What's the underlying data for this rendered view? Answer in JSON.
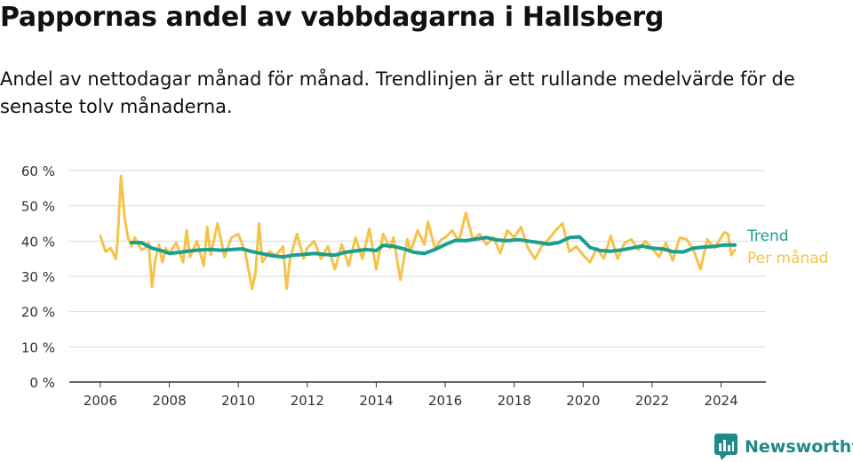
{
  "title": "Pappornas andel av vabbdagarna i Hallsberg",
  "subtitle": "Andel av nettodagar månad för månad. Trendlinjen är ett rullande medelvärde för de senaste tolv månaderna.",
  "brand": "Newsworthy",
  "colors": {
    "trend": "#1a9e8f",
    "monthly": "#f6c34a",
    "grid": "#d9d9d9",
    "axis": "#333333",
    "brand": "#1f8a88"
  },
  "chart_data": {
    "type": "line",
    "x_unit": "year (decimal)",
    "ylabel_format": "{v} %",
    "ylim": [
      0,
      60
    ],
    "yticks": [
      0,
      10,
      20,
      30,
      40,
      50,
      60
    ],
    "yticklabels": [
      "0 %",
      "10 %",
      "20 %",
      "30 %",
      "40 %",
      "50 %",
      "60 %"
    ],
    "xlim": [
      2005.1,
      2025.3
    ],
    "xticks": [
      2006,
      2008,
      2010,
      2012,
      2014,
      2016,
      2018,
      2020,
      2022,
      2024
    ],
    "xticklabels": [
      "2006",
      "2008",
      "2010",
      "2012",
      "2014",
      "2016",
      "2018",
      "2020",
      "2022",
      "2024"
    ],
    "grid": true,
    "legend": "right-end labels",
    "series": [
      {
        "name": "Trend",
        "color": "#1a9e8f",
        "x": [
          2006.9,
          2007.2,
          2007.5,
          2007.8,
          2008.0,
          2008.3,
          2008.6,
          2008.9,
          2009.2,
          2009.5,
          2009.8,
          2010.1,
          2010.4,
          2010.7,
          2011.0,
          2011.3,
          2011.6,
          2011.9,
          2012.2,
          2012.5,
          2012.8,
          2013.1,
          2013.4,
          2013.7,
          2014.0,
          2014.2,
          2014.5,
          2014.8,
          2015.1,
          2015.4,
          2015.7,
          2016.0,
          2016.3,
          2016.6,
          2016.9,
          2017.2,
          2017.5,
          2017.8,
          2018.1,
          2018.4,
          2018.7,
          2019.0,
          2019.3,
          2019.6,
          2019.9,
          2020.2,
          2020.5,
          2020.8,
          2021.1,
          2021.4,
          2021.7,
          2022.0,
          2022.3,
          2022.6,
          2022.9,
          2023.2,
          2023.5,
          2023.8,
          2024.1,
          2024.4
        ],
        "values": [
          39.6,
          39.5,
          38.0,
          37.2,
          36.5,
          36.8,
          37.2,
          37.5,
          37.6,
          37.4,
          37.6,
          37.8,
          37.0,
          36.4,
          35.8,
          35.5,
          36.0,
          36.2,
          36.5,
          36.2,
          36.0,
          36.8,
          37.2,
          37.6,
          37.3,
          38.8,
          38.5,
          37.8,
          36.8,
          36.5,
          37.6,
          39.0,
          40.2,
          40.1,
          40.6,
          41.0,
          40.3,
          40.1,
          40.4,
          40.0,
          39.6,
          39.1,
          39.6,
          41.0,
          41.2,
          38.2,
          37.3,
          37.1,
          37.5,
          38.0,
          38.6,
          38.0,
          37.8,
          37.0,
          36.9,
          38.0,
          38.3,
          38.5,
          38.9,
          38.9
        ]
      },
      {
        "name": "Per månad",
        "color": "#f6c34a",
        "x": [
          2006.0,
          2006.15,
          2006.3,
          2006.45,
          2006.5,
          2006.6,
          2006.7,
          2006.8,
          2006.9,
          2007.0,
          2007.1,
          2007.2,
          2007.3,
          2007.4,
          2007.5,
          2007.6,
          2007.7,
          2007.8,
          2007.9,
          2008.0,
          2008.2,
          2008.4,
          2008.5,
          2008.6,
          2008.8,
          2009.0,
          2009.1,
          2009.2,
          2009.4,
          2009.6,
          2009.8,
          2010.0,
          2010.2,
          2010.4,
          2010.5,
          2010.6,
          2010.7,
          2010.9,
          2011.1,
          2011.3,
          2011.4,
          2011.5,
          2011.7,
          2011.9,
          2012.0,
          2012.2,
          2012.4,
          2012.6,
          2012.8,
          2013.0,
          2013.2,
          2013.4,
          2013.6,
          2013.8,
          2014.0,
          2014.2,
          2014.4,
          2014.5,
          2014.7,
          2014.9,
          2015.0,
          2015.2,
          2015.4,
          2015.5,
          2015.7,
          2015.9,
          2016.0,
          2016.2,
          2016.4,
          2016.6,
          2016.8,
          2017.0,
          2017.2,
          2017.4,
          2017.6,
          2017.8,
          2018.0,
          2018.2,
          2018.4,
          2018.6,
          2018.8,
          2019.0,
          2019.2,
          2019.4,
          2019.6,
          2019.8,
          2020.0,
          2020.2,
          2020.4,
          2020.6,
          2020.8,
          2021.0,
          2021.2,
          2021.4,
          2021.6,
          2021.8,
          2022.0,
          2022.2,
          2022.4,
          2022.6,
          2022.8,
          2023.0,
          2023.2,
          2023.4,
          2023.6,
          2023.8,
          2024.0,
          2024.1,
          2024.2,
          2024.3,
          2024.4
        ],
        "values": [
          41.5,
          37.0,
          38.0,
          35.0,
          40.0,
          58.5,
          47.0,
          41.0,
          38.5,
          41.0,
          39.0,
          37.5,
          38.0,
          39.5,
          27.0,
          35.0,
          39.0,
          34.0,
          38.0,
          36.5,
          39.5,
          34.0,
          43.0,
          35.5,
          40.0,
          33.0,
          44.0,
          36.0,
          45.0,
          35.5,
          41.0,
          42.0,
          37.0,
          26.5,
          31.0,
          45.0,
          34.0,
          37.0,
          36.0,
          38.5,
          26.5,
          35.0,
          42.0,
          35.0,
          38.0,
          40.0,
          35.0,
          38.5,
          32.0,
          39.0,
          33.0,
          41.0,
          35.0,
          43.5,
          32.0,
          42.0,
          38.0,
          41.0,
          29.0,
          40.5,
          37.0,
          43.0,
          39.0,
          45.5,
          38.0,
          40.5,
          41.0,
          43.0,
          40.0,
          48.0,
          40.5,
          42.0,
          39.0,
          41.0,
          36.5,
          43.0,
          41.0,
          44.0,
          38.0,
          35.0,
          38.5,
          40.5,
          43.0,
          45.0,
          37.0,
          38.5,
          36.0,
          34.0,
          38.0,
          35.0,
          41.5,
          35.0,
          39.5,
          40.5,
          37.5,
          40.0,
          38.0,
          35.5,
          39.5,
          34.5,
          41.0,
          40.5,
          37.5,
          32.0,
          40.5,
          38.0,
          41.0,
          42.5,
          42.0,
          36.0,
          37.5
        ]
      }
    ]
  }
}
